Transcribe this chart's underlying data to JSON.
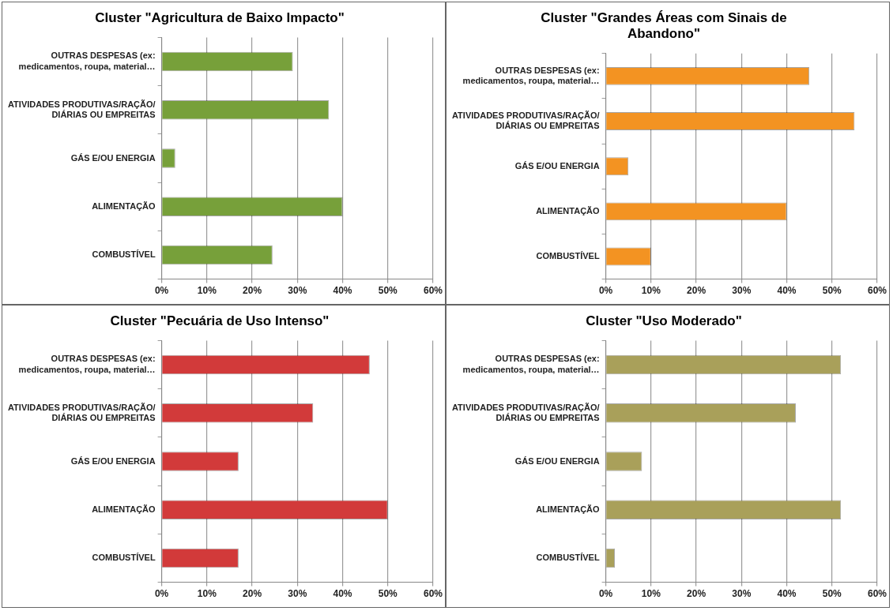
{
  "chart_data": [
    {
      "type": "bar",
      "orientation": "horizontal",
      "title": "Cluster \"Agricultura de Baixo Impacto\"",
      "categories": [
        "OUTRAS DESPESAS (ex: medicamentos, roupa, material…",
        "ATIVIDADES PRODUTIVAS/RAÇÃO/ DIÁRIAS OU EMPREITAS",
        "GÁS E/OU ENERGIA",
        "ALIMENTAÇÃO",
        "COMBUSTÍVEL"
      ],
      "values": [
        29,
        37,
        3,
        40,
        24.5
      ],
      "color": "#77a03a",
      "xlim": [
        0,
        60
      ],
      "xticks": [
        {
          "value": 0,
          "label": "0%"
        },
        {
          "value": 10,
          "label": "10%"
        },
        {
          "value": 20,
          "label": "20%"
        },
        {
          "value": 30,
          "label": "30%"
        },
        {
          "value": 40,
          "label": "40%"
        },
        {
          "value": 50,
          "label": "50%"
        },
        {
          "value": 60,
          "label": "60%"
        }
      ],
      "grid": "x",
      "legend": false
    },
    {
      "type": "bar",
      "orientation": "horizontal",
      "title": "Cluster \"Grandes Áreas com Sinais de Abandono\"",
      "categories": [
        "OUTRAS DESPESAS (ex: medicamentos, roupa, material…",
        "ATIVIDADES PRODUTIVAS/RAÇÃO/ DIÁRIAS OU EMPREITAS",
        "GÁS E/OU ENERGIA",
        "ALIMENTAÇÃO",
        "COMBUSTÍVEL"
      ],
      "values": [
        45,
        55,
        5,
        40,
        10
      ],
      "color": "#f39322",
      "xlim": [
        0,
        60
      ],
      "xticks": [
        {
          "value": 0,
          "label": "0%"
        },
        {
          "value": 10,
          "label": "10%"
        },
        {
          "value": 20,
          "label": "20%"
        },
        {
          "value": 30,
          "label": "30%"
        },
        {
          "value": 40,
          "label": "40%"
        },
        {
          "value": 50,
          "label": "50%"
        },
        {
          "value": 60,
          "label": "60%"
        }
      ],
      "grid": "x",
      "legend": false
    },
    {
      "type": "bar",
      "orientation": "horizontal",
      "title": "Cluster \"Pecuária de Uso Intenso\"",
      "categories": [
        "OUTRAS DESPESAS (ex: medicamentos, roupa, material…",
        "ATIVIDADES PRODUTIVAS/RAÇÃO/ DIÁRIAS OU EMPREITAS",
        "GÁS E/OU ENERGIA",
        "ALIMENTAÇÃO",
        "COMBUSTÍVEL"
      ],
      "values": [
        46,
        33.5,
        17,
        50,
        17
      ],
      "color": "#d23a3a",
      "xlim": [
        0,
        60
      ],
      "xticks": [
        {
          "value": 0,
          "label": "0%"
        },
        {
          "value": 10,
          "label": "10%"
        },
        {
          "value": 20,
          "label": "20%"
        },
        {
          "value": 30,
          "label": "30%"
        },
        {
          "value": 40,
          "label": "40%"
        },
        {
          "value": 50,
          "label": "50%"
        },
        {
          "value": 60,
          "label": "60%"
        }
      ],
      "grid": "x",
      "legend": false
    },
    {
      "type": "bar",
      "orientation": "horizontal",
      "title": "Cluster \"Uso Moderado\"",
      "categories": [
        "OUTRAS DESPESAS (ex: medicamentos, roupa, material…",
        "ATIVIDADES PRODUTIVAS/RAÇÃO/ DIÁRIAS OU EMPREITAS",
        "GÁS E/OU ENERGIA",
        "ALIMENTAÇÃO",
        "COMBUSTÍVEL"
      ],
      "values": [
        52,
        42,
        8,
        52,
        2
      ],
      "color": "#a9a05a",
      "xlim": [
        0,
        60
      ],
      "xticks": [
        {
          "value": 0,
          "label": "0%"
        },
        {
          "value": 10,
          "label": "10%"
        },
        {
          "value": 20,
          "label": "20%"
        },
        {
          "value": 30,
          "label": "30%"
        },
        {
          "value": 40,
          "label": "40%"
        },
        {
          "value": 50,
          "label": "50%"
        },
        {
          "value": 60,
          "label": "60%"
        }
      ],
      "grid": "x",
      "legend": false
    }
  ]
}
